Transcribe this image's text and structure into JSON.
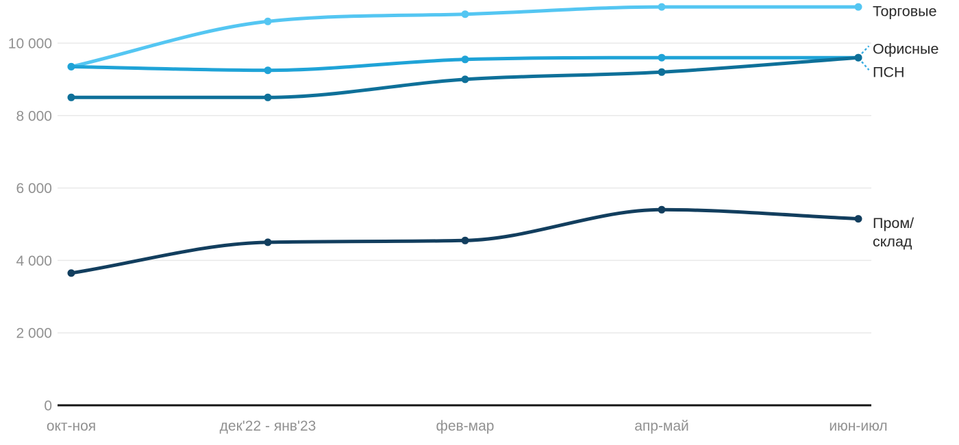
{
  "chart_data": {
    "type": "line",
    "title": "",
    "categories": [
      "окт-ноя",
      "дек'22 - янв'23",
      "фев-мар",
      "апр-май",
      "июн-июл"
    ],
    "series": [
      {
        "key": "retail",
        "name": "Торговые",
        "label_lines": [
          "Торговые"
        ],
        "color": "#54C6F2",
        "values": [
          9350,
          10600,
          10800,
          11000,
          11000
        ]
      },
      {
        "key": "office",
        "name": "Офисные",
        "label_lines": [
          "Офисные"
        ],
        "color": "#1FA3D7",
        "values": [
          9350,
          9250,
          9550,
          9600,
          9600
        ]
      },
      {
        "key": "psn",
        "name": "ПСН",
        "label_lines": [
          "ПСН"
        ],
        "color": "#0E7099",
        "values": [
          8500,
          8500,
          9000,
          9200,
          9600
        ]
      },
      {
        "key": "industrial-warehouse",
        "name": "Пром/склад",
        "label_lines": [
          "Пром/",
          "склад"
        ],
        "color": "#123E5E",
        "values": [
          3650,
          4500,
          4550,
          5400,
          5150
        ]
      }
    ],
    "y_axis": {
      "ticks": [
        0,
        2000,
        4000,
        6000,
        8000,
        10000
      ],
      "tick_labels": [
        "0",
        "2 000",
        "4 000",
        "6 000",
        "8 000",
        "10 000"
      ],
      "min": 0,
      "max": 11300
    },
    "x_axis": {
      "tick_labels": [
        "окт-ноя",
        "дек'22 - янв'23",
        "фев-мар",
        "апр-май",
        "июн-июл"
      ]
    },
    "grid": "horizontal",
    "legend_position": "right-line-end-labels"
  },
  "colors": {
    "background": "#FFFFFF",
    "gridline": "#E9E9E9",
    "axis_line": "#141414",
    "tick_label": "#919191",
    "series_label": "#2A2A2A",
    "connector": "#3BAEE2"
  }
}
